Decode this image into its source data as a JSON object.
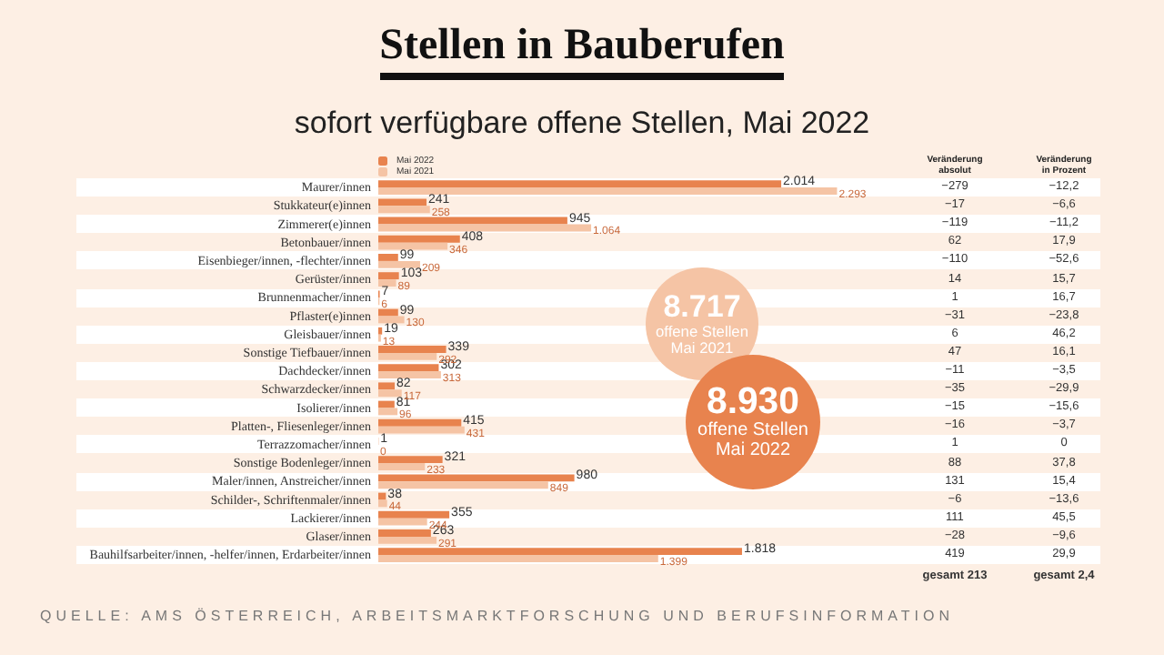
{
  "chart_data": {
    "type": "bar",
    "orientation": "horizontal",
    "title": "Stellen in Bauberufen",
    "subtitle": "sofort verfügbare offene Stellen, Mai 2022",
    "categories": [
      "Maurer/innen",
      "Stukkateur(e)innen",
      "Zimmerer(e)innen",
      "Betonbauer/innen",
      "Eisenbieger/innen, -flechter/innen",
      "Gerüster/innen",
      "Brunnenmacher/innen",
      "Pflaster(e)innen",
      "Gleisbauer/innen",
      "Sonstige Tiefbauer/innen",
      "Dachdecker/innen",
      "Schwarzdecker/innen",
      "Isolierer/innen",
      "Platten-, Fliesenleger/innen",
      "Terrazzomacher/innen",
      "Sonstige Bodenleger/innen",
      "Maler/innen, Anstreicher/innen",
      "Schilder-, Schriftenmaler/innen",
      "Lackierer/innen",
      "Glaser/innen",
      "Bauhilfsarbeiter/innen, -helfer/innen, Erdarbeiter/innen"
    ],
    "series": [
      {
        "name": "Mai 2022",
        "color": "#e8834e",
        "values": [
          2014,
          241,
          945,
          408,
          99,
          103,
          7,
          99,
          19,
          339,
          302,
          82,
          81,
          415,
          1,
          321,
          980,
          38,
          355,
          263,
          1818
        ],
        "value_labels": [
          "2.014",
          "241",
          "945",
          "408",
          "99",
          "103",
          "7",
          "99",
          "19",
          "339",
          "302",
          "82",
          "81",
          "415",
          "1",
          "321",
          "980",
          "38",
          "355",
          "263",
          "1.818"
        ]
      },
      {
        "name": "Mai 2021",
        "color": "#f5c4a5",
        "values": [
          2293,
          258,
          1064,
          346,
          209,
          89,
          6,
          130,
          13,
          292,
          313,
          117,
          96,
          431,
          0,
          233,
          849,
          44,
          244,
          291,
          1399
        ],
        "value_labels": [
          "2.293",
          "258",
          "1.064",
          "346",
          "209",
          "89",
          "6",
          "130",
          "13",
          "292",
          "313",
          "117",
          "96",
          "431",
          "0",
          "233",
          "849",
          "44",
          "244",
          "291",
          "1.399"
        ]
      }
    ],
    "legend": "top left",
    "grid": false,
    "annotations": [
      "QUELLE: AMS ÖSTERREICH, ARBEITSMARKTFORSCHUNG UND BERUFSINFORMATION",
      "8.717\noffene Stellen\nMai 2021",
      "8.930\noffene Stellen\nMai 2022",
      "Veränderung\nabsolut",
      "Veränderung\nin Prozent",
      "−279",
      "−12,2",
      "−17",
      "−6,6",
      "−119",
      "−11,2",
      "62",
      "17,9",
      "−110",
      "−52,6",
      "14",
      "15,7",
      "1",
      "16,7",
      "−31",
      "−23,8",
      "6",
      "46,2",
      "47",
      "16,1",
      "−11",
      "−3,5",
      "−35",
      "−29,9",
      "−15",
      "−15,6",
      "−16",
      "−3,7",
      "1",
      "0",
      "88",
      "37,8",
      "131",
      "15,4",
      "−6",
      "−13,6",
      "111",
      "45,5",
      "−28",
      "−9,6",
      "419",
      "29,9",
      "gesamt 213",
      "gesamt 2,4"
    ]
  }
}
